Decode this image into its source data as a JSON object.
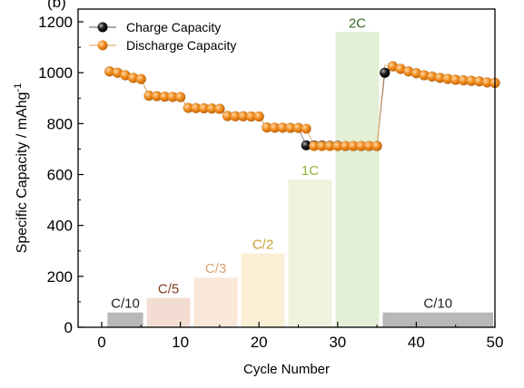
{
  "chart_data": {
    "type": "scatter",
    "panel_label": "(b)",
    "xlabel": "Cycle Number",
    "ylabel": "Specific Capacity / mAhg",
    "ylabel_superscript": "-1",
    "xlim": [
      -3,
      50
    ],
    "ylim": [
      0,
      1250
    ],
    "xticks": [
      0,
      10,
      20,
      30,
      40,
      50
    ],
    "yticks": [
      0,
      200,
      400,
      600,
      800,
      1000,
      1200
    ],
    "legend_position": "top-left",
    "series": [
      {
        "name": "Charge Capacity",
        "color": "#000000",
        "x": [
          1,
          2,
          3,
          4,
          5,
          6,
          7,
          8,
          9,
          10,
          11,
          12,
          13,
          14,
          15,
          16,
          17,
          18,
          19,
          20,
          21,
          22,
          23,
          24,
          25,
          26,
          27,
          28,
          29,
          30,
          31,
          32,
          33,
          34,
          35,
          36,
          37,
          38,
          39,
          40,
          41,
          42,
          43,
          44,
          45,
          46,
          47,
          48,
          49,
          50
        ],
        "values": [
          1005,
          1000,
          990,
          980,
          975,
          910,
          908,
          906,
          905,
          904,
          862,
          861,
          860,
          859,
          858,
          830,
          829,
          829,
          828,
          828,
          785,
          784,
          784,
          783,
          783,
          715,
          714,
          714,
          713,
          713,
          712,
          712,
          712,
          712,
          712,
          1000,
          1025,
          1015,
          1005,
          998,
          990,
          985,
          980,
          976,
          972,
          970,
          968,
          966,
          962,
          960
        ]
      },
      {
        "name": "Discharge Capacity",
        "color": "#f08c1e",
        "x": [
          1,
          2,
          3,
          4,
          5,
          6,
          7,
          8,
          9,
          10,
          11,
          12,
          13,
          14,
          15,
          16,
          17,
          18,
          19,
          20,
          21,
          22,
          23,
          24,
          25,
          26,
          27,
          28,
          29,
          30,
          31,
          32,
          33,
          34,
          35,
          36,
          37,
          38,
          39,
          40,
          41,
          42,
          43,
          44,
          45,
          46,
          47,
          48,
          49,
          50
        ],
        "values": [
          1005,
          1000,
          990,
          980,
          975,
          910,
          908,
          906,
          905,
          904,
          862,
          861,
          860,
          859,
          858,
          830,
          829,
          829,
          828,
          828,
          785,
          784,
          784,
          783,
          783,
          780,
          712,
          712,
          712,
          712,
          712,
          712,
          712,
          712,
          712,
          1030,
          1025,
          1015,
          1005,
          998,
          990,
          985,
          980,
          976,
          972,
          970,
          968,
          966,
          962,
          960
        ]
      }
    ],
    "rate_bars": [
      {
        "label": "C/10",
        "x_start": 1,
        "x_end": 5,
        "value": 58,
        "color": "#b8b8b8",
        "label_color": "#222222"
      },
      {
        "label": "C/5",
        "x_start": 6,
        "x_end": 11,
        "value": 115,
        "color": "#f3ddd2",
        "label_color": "#7a3b1a"
      },
      {
        "label": "C/3",
        "x_start": 12,
        "x_end": 17,
        "value": 195,
        "color": "#fae7d8",
        "label_color": "#d9a070"
      },
      {
        "label": "C/2",
        "x_start": 18,
        "x_end": 23,
        "value": 290,
        "color": "#fbf0d6",
        "label_color": "#c9a133"
      },
      {
        "label": "1C",
        "x_start": 24,
        "x_end": 29,
        "value": 580,
        "color": "#eef3dd",
        "label_color": "#8fb13a"
      },
      {
        "label": "2C",
        "x_start": 30,
        "x_end": 35,
        "value": 1160,
        "color": "#e3efd6",
        "label_color": "#3d6b26"
      },
      {
        "label": "C/10",
        "x_start": 36,
        "x_end": 50,
        "value": 58,
        "color": "#b8b8b8",
        "label_color": "#222222"
      }
    ]
  }
}
